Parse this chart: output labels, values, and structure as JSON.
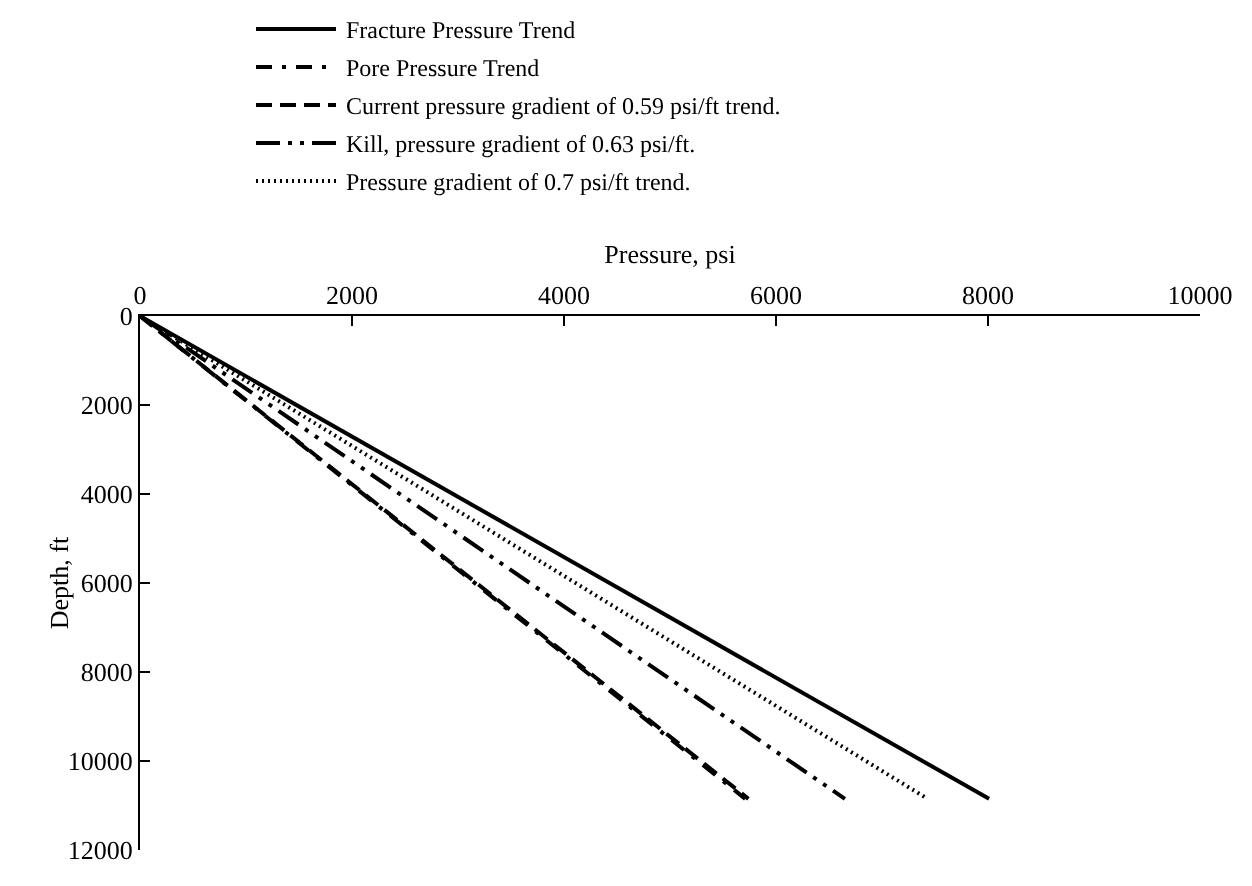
{
  "chart_data": {
    "type": "line",
    "xlabel": "Pressure, psi",
    "ylabel": "Depth, ft",
    "xlim": [
      0,
      10000
    ],
    "xticks": [
      0,
      2000,
      4000,
      6000,
      8000,
      10000
    ],
    "ylim": [
      12000,
      0
    ],
    "yticks": [
      0,
      2000,
      4000,
      6000,
      8000,
      10000,
      12000
    ],
    "grid": false,
    "legend": "top",
    "marker": "none",
    "series": [
      {
        "name": "Fracture Pressure Trend",
        "color": "#000000",
        "line_style": "solid",
        "x": [
          0,
          8010
        ],
        "values": [
          0,
          10850
        ]
      },
      {
        "name": "Pore Pressure Trend",
        "color": "#000000",
        "line_style": "dashdot",
        "x": [
          0,
          5710
        ],
        "values": [
          0,
          10850
        ]
      },
      {
        "name": "Current pressure gradient of 0.59 psi/ft trend.",
        "color": "#000000",
        "line_style": "dashed",
        "x": [
          0,
          5740
        ],
        "values": [
          0,
          10850
        ]
      },
      {
        "name": "Kill, pressure gradient of 0.63 psi/ft.",
        "color": "#000000",
        "line_style": "longdashdotdot",
        "x": [
          0,
          6650
        ],
        "values": [
          0,
          10850
        ]
      },
      {
        "name": "Pressure gradient of 0.7 psi/ft trend.",
        "color": "#000000",
        "line_style": "dotted",
        "x": [
          0,
          7430
        ],
        "values": [
          0,
          10850
        ]
      }
    ]
  }
}
